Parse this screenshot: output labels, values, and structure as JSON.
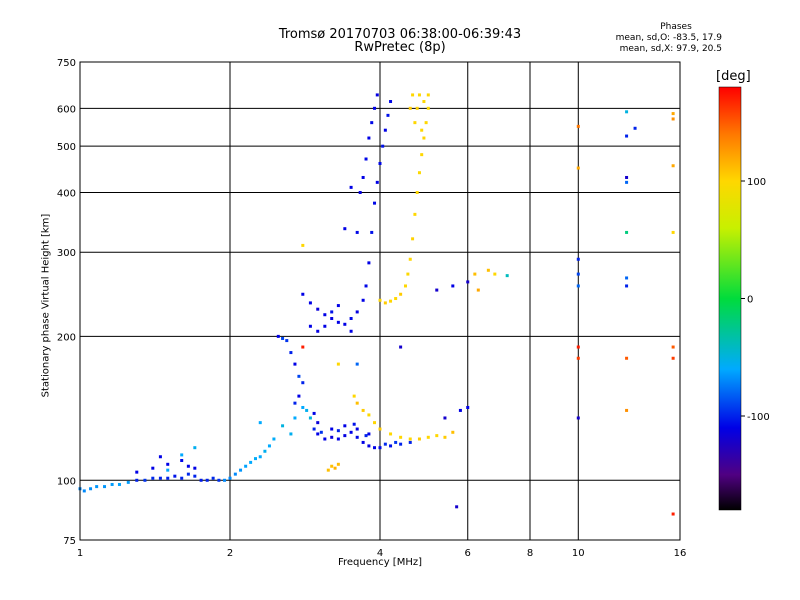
{
  "title_line1": "Tromsø 20170703 06:38:00-06:39:43",
  "title_line2": "RwPretec (8p)",
  "phases": {
    "heading": "Phases",
    "line_o": "mean, sd,O: -83.5, 17.9",
    "line_x": "mean, sd,X:  97.9, 20.5"
  },
  "colorbar": {
    "label": "[deg]",
    "ticks": [
      {
        "value": 100,
        "label": "100"
      },
      {
        "value": 0,
        "label": "0"
      },
      {
        "value": -100,
        "label": "-100"
      }
    ],
    "range": [
      -180,
      180
    ]
  },
  "chart_data": {
    "type": "scatter",
    "xlabel": "Frequency [MHz]",
    "ylabel": "Stationary phase Virtual Height [km]",
    "xscale": "log",
    "yscale": "log",
    "xlim": [
      1,
      16
    ],
    "ylim": [
      75,
      750
    ],
    "xticks": [
      {
        "v": 1,
        "l": "1"
      },
      {
        "v": 2,
        "l": "2"
      },
      {
        "v": 4,
        "l": "4"
      },
      {
        "v": 6,
        "l": "6"
      },
      {
        "v": 8,
        "l": "8"
      },
      {
        "v": 10,
        "l": "10"
      },
      {
        "v": 16,
        "l": "16"
      }
    ],
    "yticks": [
      {
        "v": 75,
        "l": "75"
      },
      {
        "v": 100,
        "l": "100"
      },
      {
        "v": 200,
        "l": "200"
      },
      {
        "v": 300,
        "l": "300"
      },
      {
        "v": 400,
        "l": "400"
      },
      {
        "v": 500,
        "l": "500"
      },
      {
        "v": 600,
        "l": "600"
      },
      {
        "v": 750,
        "l": "750"
      }
    ],
    "grid": true,
    "series": [
      {
        "points": [
          [
            1.0,
            96,
            -70
          ],
          [
            1.02,
            95,
            -70
          ],
          [
            1.05,
            96,
            -68
          ],
          [
            1.08,
            97,
            -66
          ],
          [
            1.12,
            97,
            -66
          ],
          [
            1.16,
            98,
            -64
          ],
          [
            1.2,
            98,
            -62
          ],
          [
            1.25,
            99,
            -64
          ],
          [
            1.3,
            100,
            -100
          ],
          [
            1.35,
            100,
            -95
          ],
          [
            1.4,
            101,
            -98
          ],
          [
            1.45,
            101,
            -100
          ],
          [
            1.5,
            101,
            -100
          ],
          [
            1.55,
            102,
            -104
          ],
          [
            1.6,
            101,
            -100
          ],
          [
            1.65,
            103,
            -98
          ],
          [
            1.7,
            102,
            -100
          ],
          [
            1.75,
            100,
            -102
          ],
          [
            1.8,
            100,
            -100
          ],
          [
            1.85,
            101,
            -98
          ],
          [
            1.9,
            100,
            -96
          ],
          [
            1.95,
            100,
            -70
          ],
          [
            2.0,
            101,
            -70
          ],
          [
            2.05,
            103,
            -70
          ],
          [
            2.1,
            105,
            -66
          ],
          [
            2.15,
            107,
            -62
          ],
          [
            2.2,
            109,
            -60
          ],
          [
            2.25,
            111,
            -58
          ],
          [
            2.3,
            112,
            -60
          ],
          [
            2.35,
            115,
            -55
          ],
          [
            2.4,
            118,
            -60
          ],
          [
            2.45,
            122,
            -58
          ],
          [
            1.3,
            104,
            -110
          ],
          [
            1.4,
            106,
            -110
          ],
          [
            1.5,
            108,
            -110
          ],
          [
            1.6,
            110,
            -108
          ],
          [
            1.7,
            106,
            -110
          ],
          [
            1.5,
            105,
            -60
          ],
          [
            1.6,
            113,
            -60
          ],
          [
            1.7,
            117,
            -55
          ],
          [
            1.45,
            112,
            -110
          ],
          [
            1.65,
            107,
            -110
          ]
        ]
      },
      {
        "points": [
          [
            2.5,
            200,
            -110
          ],
          [
            2.55,
            198,
            -90
          ],
          [
            2.6,
            196,
            -95
          ],
          [
            2.65,
            185,
            -100
          ],
          [
            2.7,
            175,
            -110
          ],
          [
            2.75,
            165,
            -90
          ],
          [
            2.8,
            160,
            -100
          ],
          [
            2.75,
            150,
            -110
          ],
          [
            2.7,
            145,
            -100
          ],
          [
            2.8,
            142,
            -60
          ],
          [
            2.85,
            140,
            -55
          ],
          [
            2.9,
            135,
            -50
          ],
          [
            2.95,
            128,
            -100
          ],
          [
            3.0,
            125,
            -110
          ],
          [
            3.1,
            122,
            -110
          ],
          [
            3.2,
            123,
            -115
          ],
          [
            3.3,
            122,
            -110
          ],
          [
            3.4,
            124,
            -112
          ],
          [
            3.5,
            126,
            -110
          ],
          [
            3.6,
            123,
            -108
          ],
          [
            3.7,
            120,
            -110
          ],
          [
            3.8,
            118,
            -112
          ],
          [
            3.9,
            117,
            -110
          ],
          [
            4.0,
            117,
            -108
          ],
          [
            4.2,
            118,
            -105
          ],
          [
            4.4,
            119,
            -100
          ],
          [
            4.6,
            120,
            -100
          ],
          [
            3.2,
            128,
            -110
          ],
          [
            3.4,
            130,
            -110
          ],
          [
            3.6,
            128,
            -112
          ],
          [
            3.8,
            125,
            -110
          ],
          [
            3.0,
            132,
            -115
          ],
          [
            2.95,
            138,
            -110
          ],
          [
            2.65,
            125,
            -55
          ],
          [
            2.55,
            130,
            -50
          ],
          [
            2.3,
            132,
            -60
          ],
          [
            2.7,
            135,
            -60
          ],
          [
            3.05,
            126,
            -95
          ],
          [
            3.3,
            127,
            -100
          ],
          [
            3.55,
            131,
            -105
          ],
          [
            3.75,
            124,
            -100
          ],
          [
            4.1,
            119,
            -98
          ],
          [
            4.3,
            120,
            -95
          ]
        ]
      },
      {
        "points": [
          [
            3.55,
            150,
            100
          ],
          [
            3.6,
            145,
            110
          ],
          [
            3.7,
            140,
            105
          ],
          [
            3.8,
            137,
            98
          ],
          [
            3.9,
            132,
            100
          ],
          [
            4.0,
            128,
            105
          ],
          [
            4.2,
            125,
            100
          ],
          [
            4.4,
            123,
            100
          ],
          [
            4.6,
            122,
            100
          ],
          [
            4.8,
            122,
            105
          ],
          [
            5.0,
            123,
            100
          ],
          [
            5.2,
            124,
            100
          ],
          [
            5.4,
            123,
            105
          ],
          [
            5.6,
            126,
            110
          ],
          [
            3.2,
            107,
            110
          ],
          [
            3.25,
            106,
            115
          ],
          [
            3.15,
            105,
            110
          ],
          [
            3.3,
            108,
            112
          ]
        ]
      },
      {
        "points": [
          [
            2.8,
            245,
            -110
          ],
          [
            2.9,
            235,
            -110
          ],
          [
            3.0,
            228,
            -115
          ],
          [
            3.1,
            222,
            -110
          ],
          [
            3.2,
            218,
            -112
          ],
          [
            3.3,
            214,
            -110
          ],
          [
            3.4,
            212,
            -110
          ],
          [
            3.5,
            218,
            -108
          ],
          [
            3.6,
            225,
            -112
          ],
          [
            3.7,
            238,
            -110
          ],
          [
            3.75,
            255,
            -108
          ],
          [
            3.8,
            285,
            -110
          ],
          [
            3.85,
            330,
            -105
          ],
          [
            3.9,
            380,
            -108
          ],
          [
            3.95,
            420,
            -110
          ],
          [
            4.0,
            460,
            -108
          ],
          [
            4.05,
            500,
            -105
          ],
          [
            4.1,
            540,
            -110
          ],
          [
            4.15,
            580,
            -105
          ],
          [
            4.2,
            620,
            -108
          ],
          [
            2.9,
            210,
            -110
          ],
          [
            3.0,
            205,
            -112
          ],
          [
            3.1,
            210,
            -110
          ],
          [
            3.2,
            225,
            -105
          ],
          [
            3.3,
            232,
            -110
          ],
          [
            3.5,
            205,
            -110
          ],
          [
            3.4,
            336,
            -110
          ],
          [
            3.6,
            330,
            -108
          ],
          [
            3.5,
            410,
            -110
          ],
          [
            3.65,
            400,
            -112
          ],
          [
            3.7,
            430,
            -110
          ],
          [
            3.75,
            470,
            -108
          ],
          [
            3.8,
            520,
            -110
          ],
          [
            3.85,
            560,
            -108
          ],
          [
            3.9,
            600,
            -110
          ],
          [
            3.95,
            640,
            -112
          ]
        ]
      },
      {
        "points": [
          [
            4.0,
            238,
            100
          ],
          [
            4.1,
            235,
            105
          ],
          [
            4.2,
            237,
            100
          ],
          [
            4.3,
            240,
            100
          ],
          [
            4.4,
            245,
            105
          ],
          [
            4.5,
            255,
            100
          ],
          [
            4.55,
            270,
            98
          ],
          [
            4.6,
            290,
            100
          ],
          [
            4.65,
            320,
            102
          ],
          [
            4.7,
            360,
            100
          ],
          [
            4.75,
            400,
            100
          ],
          [
            4.8,
            440,
            98
          ],
          [
            4.85,
            480,
            100
          ],
          [
            4.9,
            520,
            102
          ],
          [
            4.95,
            560,
            100
          ],
          [
            5.0,
            600,
            98
          ],
          [
            5.0,
            640,
            100
          ],
          [
            4.7,
            560,
            100
          ],
          [
            4.75,
            600,
            102
          ],
          [
            4.8,
            640,
            100
          ],
          [
            4.85,
            540,
            100
          ],
          [
            4.9,
            620,
            100
          ],
          [
            4.6,
            600,
            105
          ],
          [
            4.65,
            640,
            100
          ]
        ]
      },
      {
        "points": [
          [
            10.0,
            550,
            140
          ],
          [
            10.0,
            450,
            120
          ],
          [
            10.0,
            290,
            -100
          ],
          [
            10.0,
            270,
            -90
          ],
          [
            10.0,
            255,
            -80
          ],
          [
            10.0,
            190,
            170
          ],
          [
            10.0,
            180,
            160
          ],
          [
            10.0,
            135,
            -120
          ],
          [
            12.5,
            590,
            -50
          ],
          [
            12.5,
            525,
            -100
          ],
          [
            12.5,
            430,
            -120
          ],
          [
            12.5,
            420,
            -80
          ],
          [
            12.5,
            330,
            -20
          ],
          [
            12.5,
            265,
            -80
          ],
          [
            12.5,
            255,
            -100
          ],
          [
            12.5,
            180,
            150
          ],
          [
            12.5,
            140,
            130
          ],
          [
            13.0,
            545,
            -100
          ],
          [
            15.5,
            585,
            120
          ],
          [
            15.5,
            570,
            130
          ],
          [
            15.5,
            455,
            120
          ],
          [
            15.5,
            330,
            100
          ],
          [
            15.5,
            190,
            150
          ],
          [
            15.5,
            180,
            160
          ],
          [
            15.5,
            85,
            170
          ],
          [
            6.2,
            270,
            110
          ],
          [
            6.6,
            275,
            110
          ],
          [
            6.8,
            270,
            100
          ],
          [
            7.2,
            268,
            -40
          ],
          [
            6.3,
            250,
            120
          ],
          [
            6.0,
            260,
            -120
          ],
          [
            5.6,
            255,
            -110
          ],
          [
            5.2,
            250,
            -120
          ],
          [
            5.4,
            135,
            -120
          ],
          [
            5.8,
            140,
            -110
          ],
          [
            6.0,
            142,
            -110
          ],
          [
            2.8,
            190,
            170
          ],
          [
            2.8,
            310,
            100
          ],
          [
            3.3,
            175,
            100
          ],
          [
            3.6,
            175,
            -80
          ],
          [
            4.4,
            190,
            -120
          ],
          [
            5.7,
            88,
            -120
          ]
        ]
      }
    ]
  }
}
